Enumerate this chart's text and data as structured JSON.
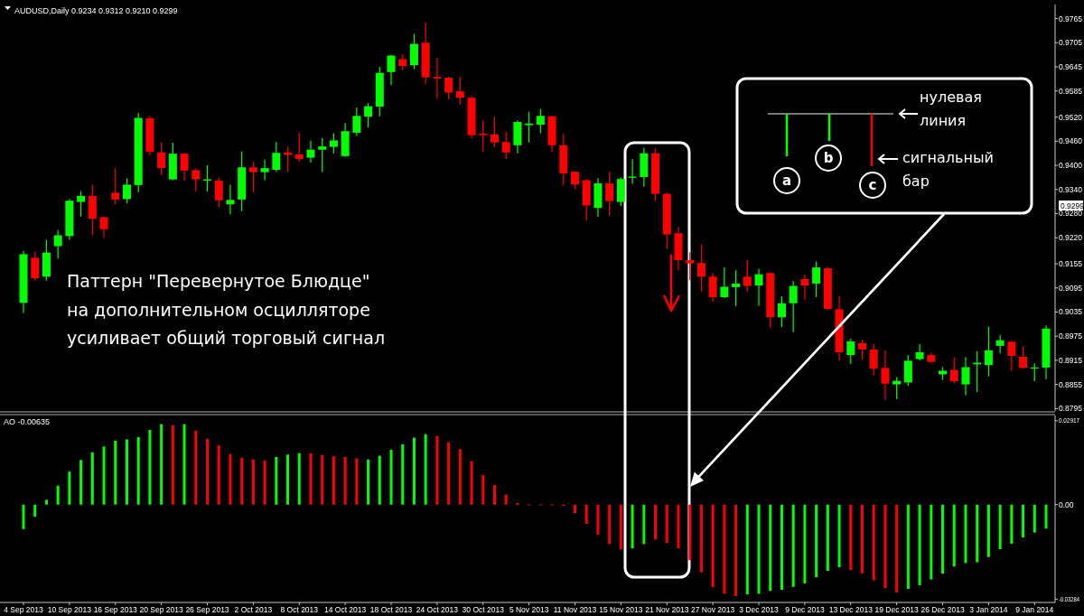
{
  "chart_data": [
    {
      "type": "candlestick",
      "title": "AUDUSD,Daily  0.9234 0.9312 0.9210 0.9299",
      "tick_labels": "y",
      "categories": [
        null,
        null,
        null,
        null,
        null,
        null,
        null,
        null,
        null,
        null,
        null,
        null,
        null,
        null,
        null,
        null,
        null,
        null,
        null,
        null,
        null,
        null,
        null,
        null,
        null,
        null,
        null,
        null,
        null,
        null,
        null,
        null,
        null,
        null,
        null,
        null,
        null,
        null,
        null,
        null,
        null,
        null,
        null,
        null,
        null,
        null,
        null,
        null,
        null,
        null,
        null,
        null,
        null,
        null,
        null,
        null,
        null,
        null,
        null,
        null,
        null,
        null,
        null,
        null,
        null,
        null,
        null,
        null,
        null,
        null,
        null,
        null,
        null,
        null,
        null,
        null,
        null,
        null,
        null,
        null,
        null,
        null,
        null,
        null,
        null,
        null,
        null,
        null,
        null,
        null
      ],
      "ohlc": [
        [
          0.9058,
          0.9187,
          0.9033,
          0.9179
        ],
        [
          0.917,
          0.9185,
          0.9113,
          0.9119
        ],
        [
          0.9123,
          0.9215,
          0.9113,
          0.9183
        ],
        [
          0.9199,
          0.9239,
          0.9168,
          0.9226
        ],
        [
          0.9224,
          0.9316,
          0.9215,
          0.9312
        ],
        [
          0.9309,
          0.9336,
          0.9273,
          0.9324
        ],
        [
          0.9324,
          0.9352,
          0.9226,
          0.9267
        ],
        [
          0.9271,
          0.9273,
          0.922,
          0.9241
        ],
        [
          0.9332,
          0.9394,
          0.9303,
          0.9315
        ],
        [
          0.9316,
          0.9368,
          0.9305,
          0.9352
        ],
        [
          0.9351,
          0.953,
          0.9333,
          0.9518
        ],
        [
          0.9517,
          0.9523,
          0.9424,
          0.9434
        ],
        [
          0.9432,
          0.9457,
          0.9376,
          0.9393
        ],
        [
          0.9365,
          0.9456,
          0.9363,
          0.9429
        ],
        [
          0.9429,
          0.9431,
          0.9362,
          0.9387
        ],
        [
          0.9388,
          0.9392,
          0.9335,
          0.9365
        ],
        [
          0.9362,
          0.94,
          0.9335,
          0.9365
        ],
        [
          0.9362,
          0.937,
          0.9295,
          0.9313
        ],
        [
          0.9303,
          0.9352,
          0.9278,
          0.9314
        ],
        [
          0.9315,
          0.9435,
          0.9286,
          0.9395
        ],
        [
          0.9395,
          0.9409,
          0.9332,
          0.9383
        ],
        [
          0.9383,
          0.9414,
          0.9363,
          0.9393
        ],
        [
          0.9389,
          0.9458,
          0.9384,
          0.9431
        ],
        [
          0.9432,
          0.9446,
          0.9384,
          0.9426
        ],
        [
          0.9427,
          0.9481,
          0.9409,
          0.9416
        ],
        [
          0.9419,
          0.9462,
          0.9407,
          0.9439
        ],
        [
          0.9439,
          0.9468,
          0.9383,
          0.9447
        ],
        [
          0.9446,
          0.948,
          0.943,
          0.9462
        ],
        [
          0.9423,
          0.9505,
          0.9421,
          0.9485
        ],
        [
          0.9481,
          0.9544,
          0.9473,
          0.9523
        ],
        [
          0.9521,
          0.9555,
          0.9494,
          0.9547
        ],
        [
          0.9546,
          0.9645,
          0.9522,
          0.963
        ],
        [
          0.9632,
          0.9675,
          0.96,
          0.9673
        ],
        [
          0.9664,
          0.9676,
          0.9636,
          0.9647
        ],
        [
          0.9649,
          0.9727,
          0.9639,
          0.9702
        ],
        [
          0.9705,
          0.9755,
          0.9602,
          0.9619
        ],
        [
          0.962,
          0.9667,
          0.9566,
          0.9616
        ],
        [
          0.9618,
          0.962,
          0.9564,
          0.9581
        ],
        [
          0.9584,
          0.962,
          0.9551,
          0.9568
        ],
        [
          0.9568,
          0.9572,
          0.9467,
          0.9475
        ],
        [
          0.9479,
          0.9512,
          0.9435,
          0.9475
        ],
        [
          0.9477,
          0.9521,
          0.9445,
          0.9457
        ],
        [
          0.9458,
          0.9484,
          0.9416,
          0.9432
        ],
        [
          0.945,
          0.9512,
          0.943,
          0.9508
        ],
        [
          0.95,
          0.9534,
          0.9457,
          0.9504
        ],
        [
          0.9501,
          0.954,
          0.948,
          0.9523
        ],
        [
          0.9522,
          0.9524,
          0.9433,
          0.945
        ],
        [
          0.945,
          0.9478,
          0.935,
          0.938
        ],
        [
          0.9384,
          0.9386,
          0.9341,
          0.9352
        ],
        [
          0.9363,
          0.9366,
          0.9263,
          0.93
        ],
        [
          0.9294,
          0.9368,
          0.9272,
          0.9355
        ],
        [
          0.9355,
          0.9384,
          0.9274,
          0.9311
        ],
        [
          0.9309,
          0.937,
          0.9299,
          0.9366
        ],
        [
          0.9369,
          0.9415,
          0.9354,
          0.9372
        ],
        [
          0.9371,
          0.9444,
          0.9347,
          0.943
        ],
        [
          0.943,
          0.9442,
          0.9312,
          0.9329
        ],
        [
          0.9329,
          0.9332,
          0.9192,
          0.9228
        ],
        [
          0.9231,
          0.9247,
          0.9139,
          0.9164
        ],
        [
          0.9164,
          0.9184,
          0.9114,
          0.9156
        ],
        [
          0.9157,
          0.9203,
          0.9086,
          0.9123
        ],
        [
          0.9123,
          0.9132,
          0.9061,
          0.9072
        ],
        [
          0.9072,
          0.9146,
          0.907,
          0.9098
        ],
        [
          0.9097,
          0.9139,
          0.905,
          0.9106
        ],
        [
          0.9123,
          0.9164,
          0.9086,
          0.91
        ],
        [
          0.9101,
          0.9143,
          0.9051,
          0.9129
        ],
        [
          0.9132,
          0.9134,
          0.8995,
          0.9022
        ],
        [
          0.9022,
          0.9074,
          0.8998,
          0.9057
        ],
        [
          0.9057,
          0.9112,
          0.8985,
          0.91
        ],
        [
          0.9117,
          0.9128,
          0.9066,
          0.9101
        ],
        [
          0.9106,
          0.9161,
          0.9072,
          0.9146
        ],
        [
          0.9144,
          0.9148,
          0.904,
          0.9043
        ],
        [
          0.9042,
          0.9074,
          0.8914,
          0.8935
        ],
        [
          0.8928,
          0.8969,
          0.8906,
          0.8962
        ],
        [
          0.8958,
          0.8967,
          0.8917,
          0.8942
        ],
        [
          0.8942,
          0.8956,
          0.8878,
          0.8894
        ],
        [
          0.8896,
          0.894,
          0.8816,
          0.8857
        ],
        [
          0.8855,
          0.8873,
          0.8818,
          0.8864
        ],
        [
          0.886,
          0.8928,
          0.8852,
          0.8914
        ],
        [
          0.8918,
          0.8955,
          0.8915,
          0.8935
        ],
        [
          0.8928,
          0.8934,
          0.8909,
          0.8911
        ],
        [
          0.888,
          0.8898,
          0.8866,
          0.8889
        ],
        [
          0.8891,
          0.8923,
          0.8857,
          0.8863
        ],
        [
          0.8855,
          0.8923,
          0.8828,
          0.8898
        ],
        [
          0.8905,
          0.8938,
          0.8836,
          0.8909
        ],
        [
          0.8903,
          0.8999,
          0.8875,
          0.894
        ],
        [
          0.8951,
          0.8978,
          0.8932,
          0.8965
        ],
        [
          0.8961,
          0.8963,
          0.8889,
          0.8926
        ],
        [
          0.8924,
          0.895,
          0.8894,
          0.8896
        ],
        [
          0.8895,
          0.8907,
          0.8863,
          0.8897
        ],
        [
          0.8897,
          0.9002,
          0.8868,
          0.8994
        ]
      ],
      "colors": [
        "#00ff00",
        "#ff0000",
        "#00ff00",
        "#00ff00",
        "#00ff00",
        "#00ff00",
        "#ff0000",
        "#ff0000",
        "#ff0000",
        "#00ff00",
        "#00ff00",
        "#ff0000",
        "#ff0000",
        "#00ff00",
        "#ff0000",
        "#ff0000",
        "#00ff00",
        "#ff0000",
        "#00ff00",
        "#00ff00",
        "#ff0000",
        "#00ff00",
        "#00ff00",
        "#ff0000",
        "#ff0000",
        "#00ff00",
        "#00ff00",
        "#00ff00",
        "#00ff00",
        "#00ff00",
        "#00ff00",
        "#00ff00",
        "#00ff00",
        "#ff0000",
        "#00ff00",
        "#ff0000",
        "#ff0000",
        "#ff0000",
        "#ff0000",
        "#ff0000",
        "#ff0000",
        "#ff0000",
        "#ff0000",
        "#00ff00",
        "#00ff00",
        "#00ff00",
        "#ff0000",
        "#ff0000",
        "#ff0000",
        "#ff0000",
        "#00ff00",
        "#ff0000",
        "#00ff00",
        "#00ff00",
        "#00ff00",
        "#ff0000",
        "#ff0000",
        "#ff0000",
        "#ff0000",
        "#ff0000",
        "#ff0000",
        "#00ff00",
        "#00ff00",
        "#ff0000",
        "#00ff00",
        "#ff0000",
        "#00ff00",
        "#00ff00",
        "#ff0000",
        "#00ff00",
        "#ff0000",
        "#ff0000",
        "#00ff00",
        "#ff0000",
        "#ff0000",
        "#ff0000",
        "#00ff00",
        "#00ff00",
        "#00ff00",
        "#ff0000",
        "#00ff00",
        "#ff0000",
        "#00ff00",
        "#00ff00",
        "#00ff00",
        "#00ff00",
        "#ff0000",
        "#ff0000",
        "#00ff00",
        "#00ff00"
      ],
      "ylim": [
        0.8789,
        0.98
      ],
      "yticks": [
        0.9765,
        0.9705,
        0.9645,
        0.9585,
        {
          "value": 0.952,
          "label": "0.9520"
        },
        {
          "value": 0.946,
          "label": "0.9460"
        },
        {
          "value": 0.94,
          "label": "0.9400"
        },
        {
          "value": 0.934,
          "label": "0.9340"
        },
        {
          "value": 0.928,
          "label": "0.9280"
        },
        {
          "value": 0.922,
          "label": "0.9220"
        },
        0.9155,
        0.9095,
        0.9035,
        0.8975,
        0.8915,
        0.8855,
        0.8795
      ],
      "annotations": [
        "Паттерн \"Перевернутое Блюдце\"",
        "на дополнительном осцилляторе",
        "усиливает общий торговый сигнал",
        "нулевая",
        "линия",
        "сигнальный",
        "бар",
        "a",
        "b",
        "c",
        "0.9299"
      ]
    },
    {
      "type": "bar",
      "title": "AO -0.00635",
      "categories": [
        "4 Sep 2013",
        null,
        null,
        null,
        "10 Sep 2013",
        null,
        null,
        null,
        "16 Sep 2013",
        null,
        null,
        null,
        "20 Sep 2013",
        null,
        null,
        null,
        "26 Sep 2013",
        null,
        null,
        null,
        "2 Oct 2013",
        null,
        null,
        null,
        "8 Oct 2013",
        null,
        null,
        null,
        "14 Oct 2013",
        null,
        null,
        null,
        "18 Oct 2013",
        null,
        null,
        null,
        "24 Oct 2013",
        null,
        null,
        null,
        "30 Oct 2013",
        null,
        null,
        null,
        "5 Nov 2013",
        null,
        null,
        null,
        "11 Nov 2013",
        null,
        null,
        null,
        "15 Nov 2013",
        null,
        null,
        null,
        "21 Nov 2013",
        null,
        null,
        null,
        "27 Nov 2013",
        null,
        null,
        null,
        "3 Dec 2013",
        null,
        null,
        null,
        "9 Dec 2013",
        null,
        null,
        null,
        "13 Dec 2013",
        null,
        null,
        null,
        "19 Dec 2013",
        null,
        null,
        null,
        "26 Dec 2013",
        null,
        null,
        null,
        "3 Jan 2014",
        null,
        null,
        null,
        "9 Jan 2014",
        null
      ],
      "values": [
        -0.0085,
        -0.0042,
        0.0017,
        0.0066,
        0.0115,
        0.0155,
        0.0182,
        0.0202,
        0.0223,
        0.0227,
        0.0235,
        0.026,
        0.028,
        0.0276,
        0.028,
        0.0257,
        0.0229,
        0.0206,
        0.0176,
        0.0163,
        0.0157,
        0.0154,
        0.0166,
        0.0174,
        0.0179,
        0.0179,
        0.0173,
        0.0168,
        0.0166,
        0.0161,
        0.0157,
        0.017,
        0.0191,
        0.021,
        0.0233,
        0.0245,
        0.0238,
        0.0217,
        0.0193,
        0.0151,
        0.0103,
        0.0068,
        0.0035,
        0.0006,
        0.0001,
        0.0001,
        0.0001,
        -0.0005,
        -0.003,
        -0.0067,
        -0.0104,
        -0.0137,
        -0.0156,
        -0.0152,
        -0.0137,
        -0.0121,
        -0.0133,
        -0.0152,
        -0.0193,
        -0.0235,
        -0.0287,
        -0.031,
        -0.0318,
        -0.0312,
        -0.031,
        -0.03,
        -0.0296,
        -0.0286,
        -0.0274,
        -0.0252,
        -0.023,
        -0.0218,
        -0.0227,
        -0.0239,
        -0.0263,
        -0.029,
        -0.0305,
        -0.0293,
        -0.028,
        -0.026,
        -0.024,
        -0.0215,
        -0.0203,
        -0.02,
        -0.0182,
        -0.0155,
        -0.0136,
        -0.0114,
        -0.0097,
        -0.0083
      ],
      "colors": [
        "#00ff00",
        "#00ff00",
        "#00ff00",
        "#00ff00",
        "#00ff00",
        "#00ff00",
        "#00ff00",
        "#00ff00",
        "#00ff00",
        "#00ff00",
        "#00ff00",
        "#00ff00",
        "#00ff00",
        "#ff0000",
        "#00ff00",
        "#ff0000",
        "#ff0000",
        "#ff0000",
        "#ff0000",
        "#ff0000",
        "#ff0000",
        "#ff0000",
        "#00ff00",
        "#00ff00",
        "#00ff00",
        "#ff0000",
        "#ff0000",
        "#ff0000",
        "#ff0000",
        "#ff0000",
        "#00ff00",
        "#00ff00",
        "#00ff00",
        "#00ff00",
        "#00ff00",
        "#00ff00",
        "#ff0000",
        "#ff0000",
        "#ff0000",
        "#ff0000",
        "#ff0000",
        "#ff0000",
        "#ff0000",
        "#ff0000",
        "#ff0000",
        "#ff0000",
        "#ff0000",
        "#ff0000",
        "#ff0000",
        "#ff0000",
        "#ff0000",
        "#ff0000",
        "#ff0000",
        "#00ff00",
        "#00ff00",
        "#ff0000",
        "#ff0000",
        "#ff0000",
        "#ff0000",
        "#ff0000",
        "#ff0000",
        "#ff0000",
        "#ff0000",
        "#00ff00",
        "#00ff00",
        "#00ff00",
        "#00ff00",
        "#00ff00",
        "#00ff00",
        "#00ff00",
        "#00ff00",
        "#00ff00",
        "#ff0000",
        "#ff0000",
        "#ff0000",
        "#ff0000",
        "#ff0000",
        "#00ff00",
        "#00ff00",
        "#00ff00",
        "#00ff00",
        "#00ff00",
        "#00ff00",
        "#00ff00",
        "#00ff00",
        "#00ff00",
        "#00ff00",
        "#00ff00",
        "#00ff00",
        "#00ff00"
      ],
      "ylim": [
        -0.034,
        0.031
      ],
      "yticks": [
        0.02917,
        {
          "value": 0,
          "label": "0.00"
        },
        -0.03284
      ]
    }
  ]
}
